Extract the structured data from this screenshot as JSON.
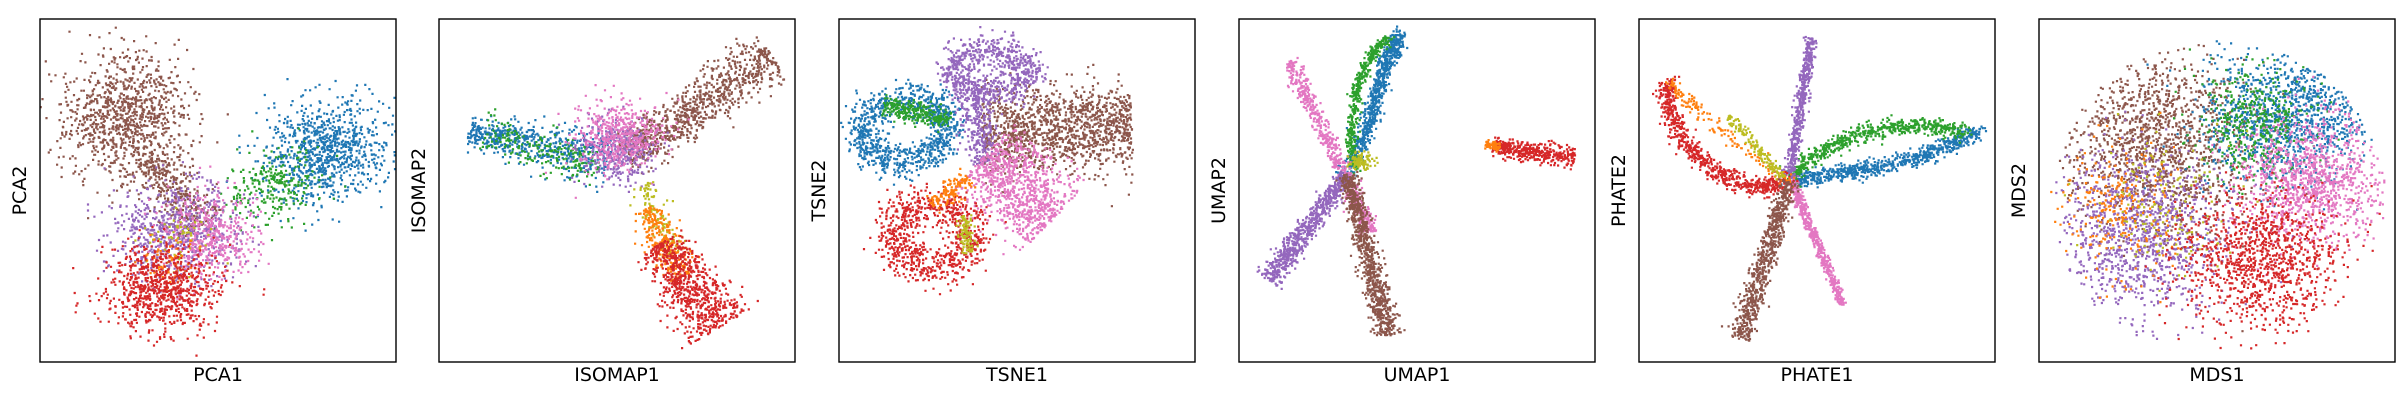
{
  "chart_data": [
    {
      "type": "scatter",
      "xlabel": "PCA1",
      "ylabel": "PCA2",
      "ticks": false
    },
    {
      "type": "scatter",
      "xlabel": "ISOMAP1",
      "ylabel": "ISOMAP2",
      "ticks": false
    },
    {
      "type": "scatter",
      "xlabel": "TSNE1",
      "ylabel": "TSNE2",
      "ticks": false
    },
    {
      "type": "scatter",
      "xlabel": "UMAP1",
      "ylabel": "UMAP2",
      "ticks": false
    },
    {
      "type": "scatter",
      "xlabel": "PHATE1",
      "ylabel": "PHATE2",
      "ticks": false
    },
    {
      "type": "scatter",
      "xlabel": "MDS1",
      "ylabel": "MDS2",
      "ticks": false
    }
  ],
  "palette": {
    "blue": "#1f77b4",
    "orange": "#ff7f0e",
    "green": "#2ca02c",
    "red": "#d62728",
    "purple": "#9467bd",
    "brown": "#8c564b",
    "pink": "#e377c2",
    "olive": "#bcbd22"
  }
}
